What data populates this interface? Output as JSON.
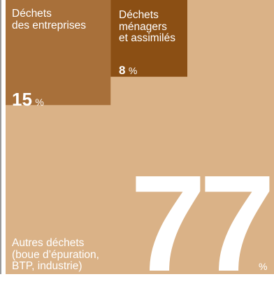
{
  "chart_data": {
    "type": "treemap",
    "unit": "%",
    "colors": {
      "autres": "#dab287",
      "entreprises": "#a8703a",
      "menagers": "#8b4f14",
      "border": "#9a9a9a"
    },
    "items": [
      {
        "id": "autres",
        "name": "Autres déchets\n(boue d’épuration,\nBTP, industrie)",
        "value": 77
      },
      {
        "id": "entreprises",
        "name": "Déchets\ndes entreprises",
        "value": 15
      },
      {
        "id": "menagers",
        "name": "Déchets\nménagers\net assimilés",
        "value": 8
      }
    ]
  }
}
